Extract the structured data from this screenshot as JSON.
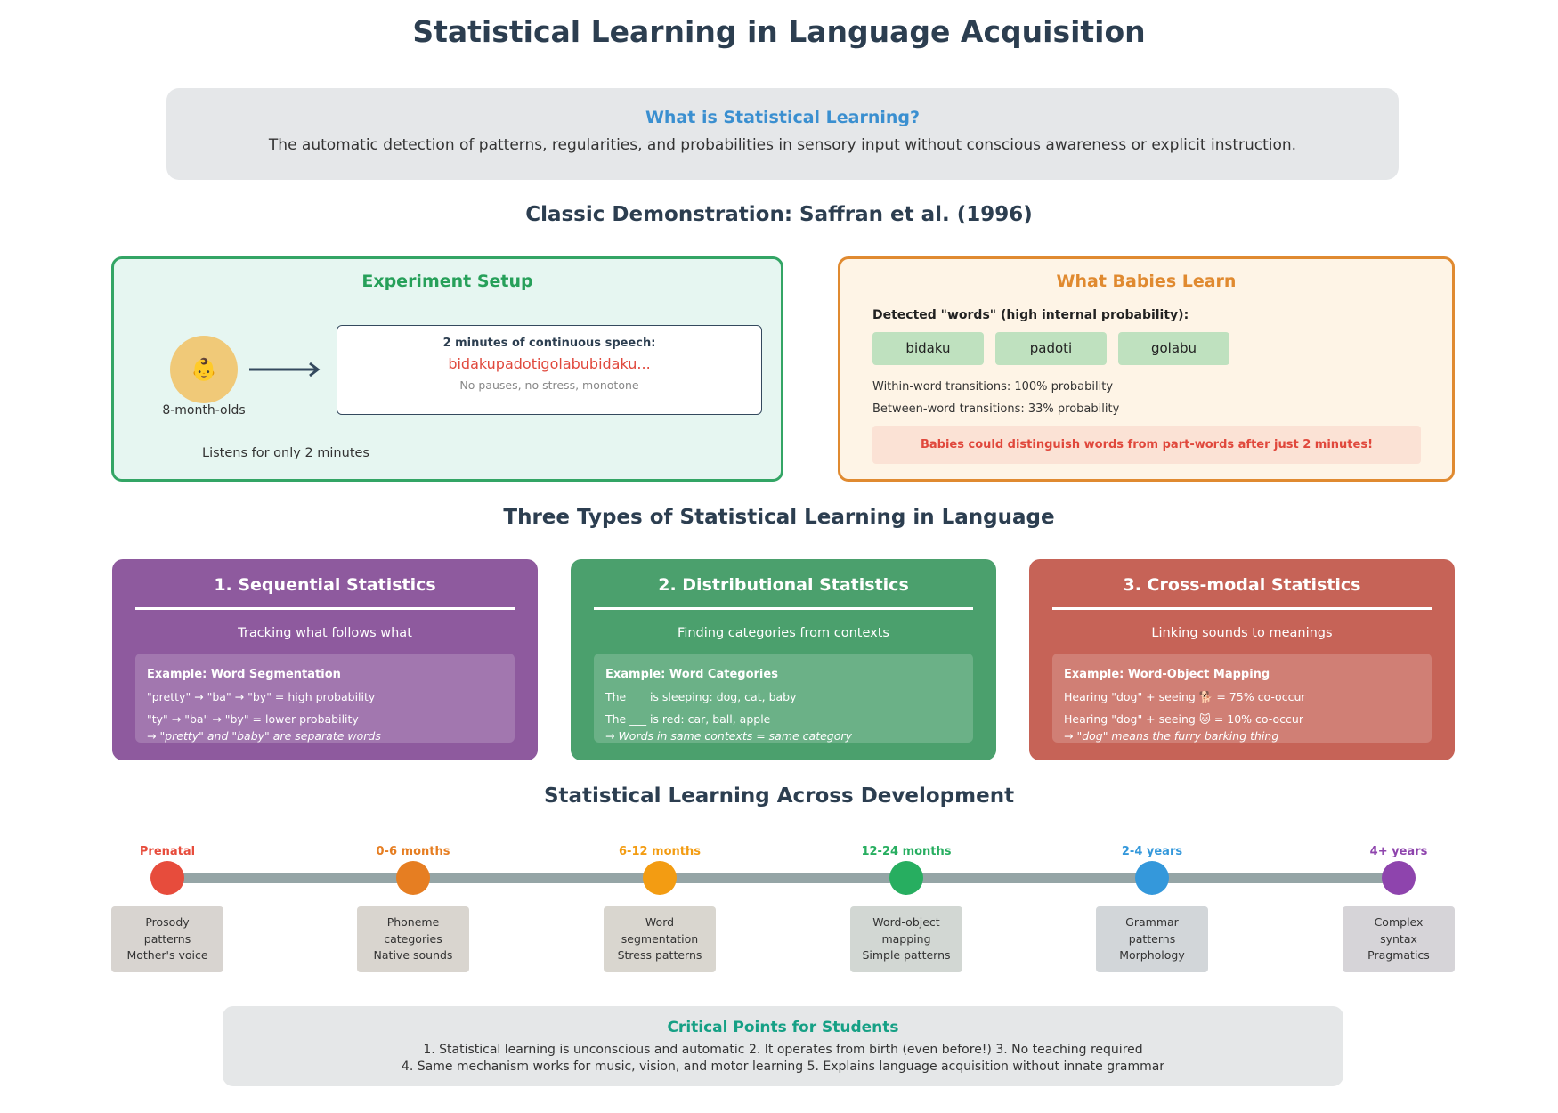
{
  "title": "Statistical Learning in Language Acquisition",
  "definition": {
    "title": "What is Statistical Learning?",
    "text": "The automatic detection of patterns, regularities, and probabilities in sensory input without conscious awareness or explicit instruction."
  },
  "classic": {
    "heading": "Classic Demonstration: Saffran et al. (1996)",
    "setup": {
      "title": "Experiment Setup",
      "baby_icon": "👶",
      "baby_label": "8-month-olds",
      "speech_title": "2 minutes of continuous speech:",
      "speech_stream": "bidakupadotigolabubidaku...",
      "speech_note": "No pauses, no stress, monotone",
      "footer": "Listens for only 2 minutes"
    },
    "learn": {
      "title": "What Babies Learn",
      "detected": "Detected \"words\" (high internal probability):",
      "words": [
        "bidaku",
        "padoti",
        "golabu"
      ],
      "within": "Within-word transitions: 100% probability",
      "between": "Between-word transitions: 33% probability",
      "result": "Babies could distinguish words from part-words after just 2 minutes!"
    }
  },
  "types": {
    "heading": "Three Types of Statistical Learning in Language",
    "items": [
      {
        "title": "1. Sequential Statistics",
        "subtitle": "Tracking what follows what",
        "example_title": "Example: Word Segmentation",
        "lines": [
          "\"pretty\" → \"ba\" → \"by\" = high probability",
          "\"ty\" → \"ba\" → \"by\" = lower probability"
        ],
        "conclusion": "→ \"pretty\" and \"baby\" are separate words",
        "color": "#8e5a9e"
      },
      {
        "title": "2. Distributional Statistics",
        "subtitle": "Finding categories from contexts",
        "example_title": "Example: Word Categories",
        "lines": [
          "The ___ is sleeping: dog, cat, baby",
          "The ___ is red: car, ball, apple"
        ],
        "conclusion": "→ Words in same contexts = same category",
        "color": "#4ba06d"
      },
      {
        "title": "3. Cross-modal Statistics",
        "subtitle": "Linking sounds to meanings",
        "example_title": "Example: Word-Object Mapping",
        "lines": [
          "Hearing \"dog\" + seeing 🐕 = 75% co-occur",
          "Hearing \"dog\" + seeing 🐱 = 10% co-occur"
        ],
        "conclusion": "→ \"dog\" means the furry barking thing",
        "color": "#c66357"
      }
    ]
  },
  "development": {
    "heading": "Statistical Learning Across Development",
    "stages": [
      {
        "label": "Prenatal",
        "color": "#e74c3c",
        "box": "#d8d4d0",
        "lines": [
          "Prosody",
          "patterns",
          "Mother's voice"
        ]
      },
      {
        "label": "0-6 months",
        "color": "#e67e22",
        "box": "#d9d5cf",
        "lines": [
          "Phoneme",
          "categories",
          "Native sounds"
        ]
      },
      {
        "label": "6-12 months",
        "color": "#f39c12",
        "box": "#d9d6cf",
        "lines": [
          "Word",
          "segmentation",
          "Stress patterns"
        ]
      },
      {
        "label": "12-24 months",
        "color": "#27ae60",
        "box": "#d2d7d3",
        "lines": [
          "Word-object",
          "mapping",
          "Simple patterns"
        ]
      },
      {
        "label": "2-4 years",
        "color": "#3498db",
        "box": "#d2d6d9",
        "lines": [
          "Grammar",
          "patterns",
          "Morphology"
        ]
      },
      {
        "label": "4+ years",
        "color": "#8e44ad",
        "box": "#d6d4d8",
        "lines": [
          "Complex",
          "syntax",
          "Pragmatics"
        ]
      }
    ]
  },
  "critical": {
    "title": "Critical Points for Students",
    "line1": "1. Statistical learning is unconscious and automatic 2. It operates from birth (even before!) 3. No teaching required",
    "line2": "4. Same mechanism works for music, vision, and motor learning 5. Explains language acquisition without innate grammar"
  }
}
